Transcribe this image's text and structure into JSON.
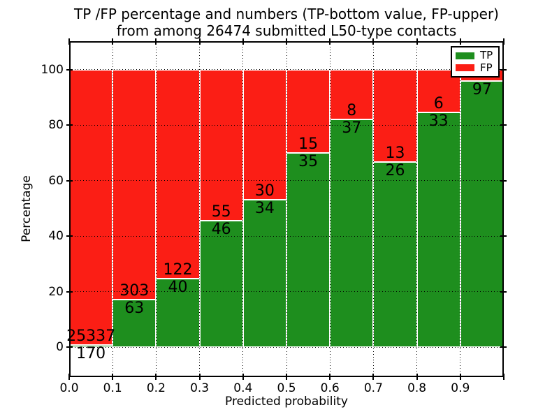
{
  "chart_data": {
    "type": "bar",
    "subtype": "stacked-percentage",
    "title_line1": "TP /FP percentage and numbers (TP-bottom value, FP-upper)",
    "title_line2": "from among 26474 submitted L50-type contacts",
    "xlabel": "Predicted probability",
    "ylabel": "Percentage",
    "xlim": [
      0.0,
      1.0
    ],
    "ylim": [
      -10.8,
      110.3
    ],
    "x_tick_labels": [
      "0.0",
      "0.1",
      "0.2",
      "0.3",
      "0.4",
      "0.5",
      "0.6",
      "0.7",
      "0.8",
      "0.9"
    ],
    "y_tick_labels": [
      "0",
      "20",
      "40",
      "60",
      "80",
      "100"
    ],
    "y_tick_values": [
      0,
      20,
      40,
      60,
      80,
      100
    ],
    "grid": "dotted, black, horizontal and vertical",
    "legend_position": "upper right",
    "legend_entries": [
      {
        "label": "TP",
        "color": "#1e8e1e"
      },
      {
        "label": "FP",
        "color": "#fb1e15"
      }
    ],
    "colors": {
      "tp": "#1e8e1e",
      "fp": "#fb1e15",
      "background": "#ffffff",
      "spine": "#000000"
    },
    "bars": [
      {
        "x_start": 0.0,
        "x_end": 0.1,
        "tp_label": "170",
        "fp_label": "25337",
        "tp_pct": 0.7
      },
      {
        "x_start": 0.1,
        "x_end": 0.2,
        "tp_label": "63",
        "fp_label": "303",
        "tp_pct": 17.2
      },
      {
        "x_start": 0.2,
        "x_end": 0.3,
        "tp_label": "40",
        "fp_label": "122",
        "tp_pct": 24.7
      },
      {
        "x_start": 0.3,
        "x_end": 0.4,
        "tp_label": "46",
        "fp_label": "55",
        "tp_pct": 45.5
      },
      {
        "x_start": 0.4,
        "x_end": 0.5,
        "tp_label": "34",
        "fp_label": "30",
        "tp_pct": 53.1
      },
      {
        "x_start": 0.5,
        "x_end": 0.6,
        "tp_label": "35",
        "fp_label": "15",
        "tp_pct": 70.0
      },
      {
        "x_start": 0.6,
        "x_end": 0.7,
        "tp_label": "37",
        "fp_label": "8",
        "tp_pct": 82.2
      },
      {
        "x_start": 0.7,
        "x_end": 0.8,
        "tp_label": "26",
        "fp_label": "13",
        "tp_pct": 66.7
      },
      {
        "x_start": 0.8,
        "x_end": 0.9,
        "tp_label": "33",
        "fp_label": "6",
        "tp_pct": 84.6
      },
      {
        "x_start": 0.9,
        "x_end": 1.0,
        "tp_label": "97",
        "fp_label": "",
        "tp_pct": 96.0
      }
    ]
  }
}
